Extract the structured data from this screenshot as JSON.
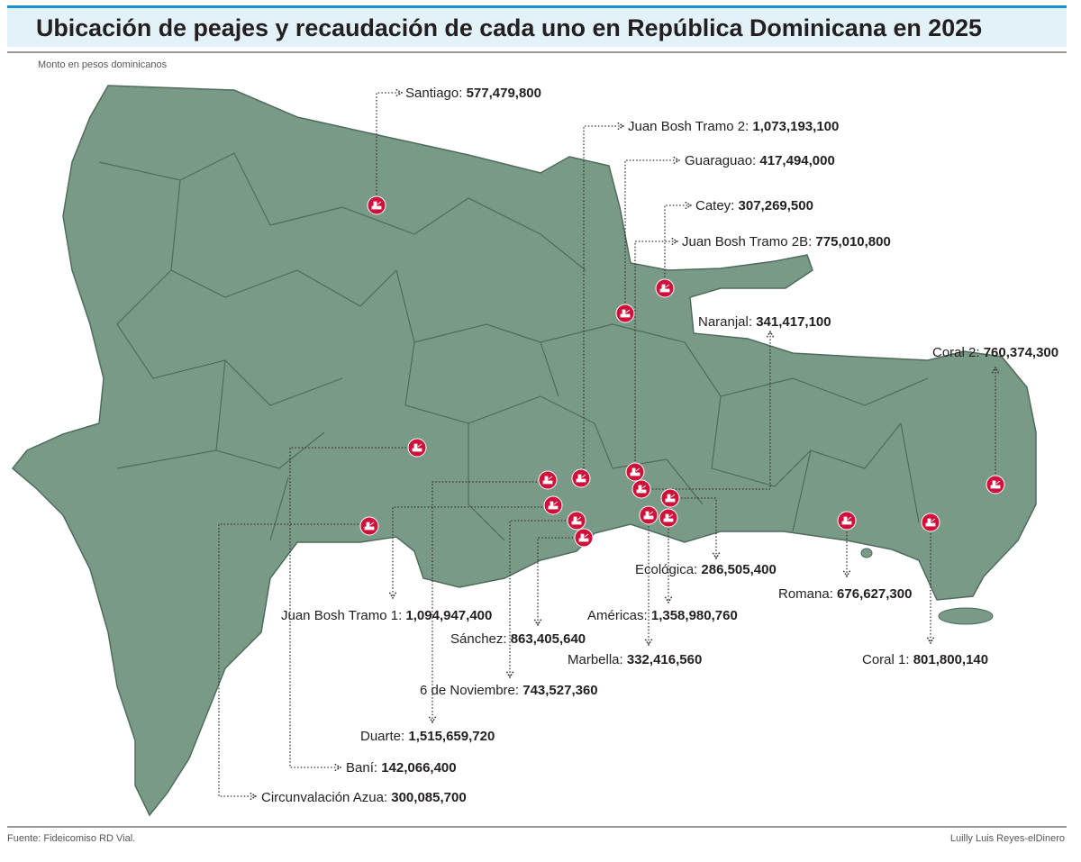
{
  "header": {
    "title": "Ubicación de peajes y recaudación de cada uno en República Dominicana en 2025",
    "subtitle": "Monto en pesos dominicanos"
  },
  "tolls": [
    {
      "name": "Santiago:",
      "amount": "577,479,800"
    },
    {
      "name": "Juan Bosh Tramo 2:",
      "amount": "1,073,193,100"
    },
    {
      "name": "Guaraguao:",
      "amount": "417,494,000"
    },
    {
      "name": "Catey:",
      "amount": "307,269,500"
    },
    {
      "name": "Juan Bosh Tramo 2B:",
      "amount": "775,010,800"
    },
    {
      "name": "Naranjal:",
      "amount": "341,417,100"
    },
    {
      "name": "Coral 2:",
      "amount": "760,374,300"
    },
    {
      "name": "Juan Bosh Tramo 1:",
      "amount": "1,094,947,400"
    },
    {
      "name": "Sánchez:",
      "amount": "863,405,640"
    },
    {
      "name": "6 de Noviembre:",
      "amount": "743,527,360"
    },
    {
      "name": "Duarte:",
      "amount": "1,515,659,720"
    },
    {
      "name": "Baní:",
      "amount": "142,066,400"
    },
    {
      "name": "Circunvalación Azua:",
      "amount": "300,085,700"
    },
    {
      "name": "Marbella:",
      "amount": "332,416,560"
    },
    {
      "name": "Américas:",
      "amount": "1,358,980,760"
    },
    {
      "name": "Ecológica:",
      "amount": "286,505,400"
    },
    {
      "name": "Romana:",
      "amount": "676,627,300"
    },
    {
      "name": "Coral 1:",
      "amount": "801,800,140"
    }
  ],
  "footer": {
    "source": "Fuente: Fideicomiso RD Vial.",
    "credit": "Luilly Luis Reyes-elDinero"
  }
}
